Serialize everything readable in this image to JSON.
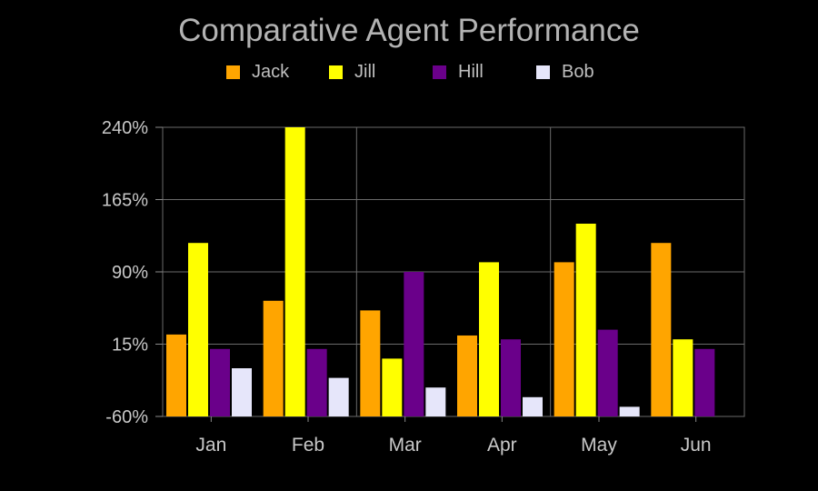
{
  "chart_data": {
    "type": "bar",
    "title": "Comparative Agent Performance",
    "categories": [
      "Jan",
      "Feb",
      "Mar",
      "Apr",
      "May",
      "Jun"
    ],
    "series": [
      {
        "name": "Jack",
        "color": "#ffa500",
        "values": [
          25,
          60,
          50,
          24,
          100,
          120
        ]
      },
      {
        "name": "Jill",
        "color": "#ffff00",
        "values": [
          120,
          240,
          0,
          100,
          140,
          20
        ]
      },
      {
        "name": "Hill",
        "color": "#6a008a",
        "values": [
          10,
          10,
          90,
          20,
          30,
          10
        ]
      },
      {
        "name": "Bob",
        "color": "#e6e6fa",
        "values": [
          -10,
          -20,
          -30,
          -40,
          -50,
          -60
        ]
      }
    ],
    "ylim": [
      -60,
      240
    ],
    "yticks": [
      "-60%",
      "15%",
      "90%",
      "165%",
      "240%"
    ],
    "grid": true,
    "legend_position": "top"
  }
}
